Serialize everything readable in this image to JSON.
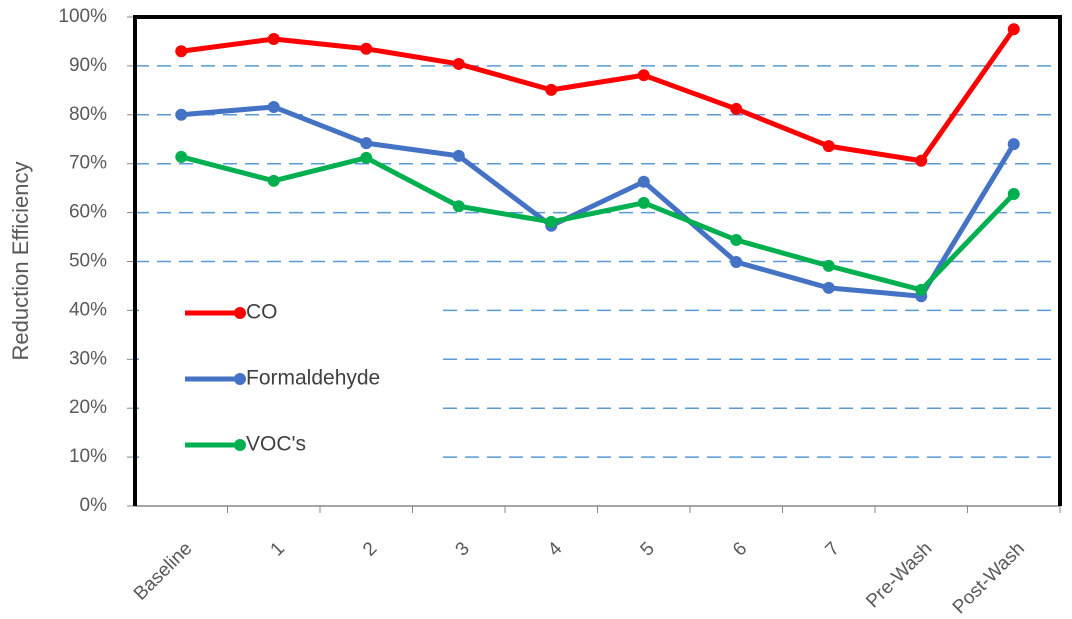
{
  "chart_data": {
    "type": "line",
    "y_label": "Reduction Efficiency",
    "categories": [
      "Baseline",
      "1",
      "2",
      "3",
      "4",
      "5",
      "6",
      "7",
      "Pre-Wash",
      "Post-Wash"
    ],
    "series": [
      {
        "name": "CO",
        "color": "#ff0000",
        "values": [
          93.0,
          95.5,
          93.5,
          90.4,
          85.1,
          88.1,
          81.2,
          73.6,
          70.6,
          97.5
        ]
      },
      {
        "name": "Formaldehyde",
        "color": "#4472c4",
        "values": [
          80.0,
          81.6,
          74.2,
          71.6,
          57.3,
          66.3,
          49.9,
          44.6,
          42.9,
          74.0
        ]
      },
      {
        "name": "VOC's",
        "color": "#00b050",
        "values": [
          71.4,
          66.5,
          71.2,
          61.3,
          58.1,
          62.0,
          54.4,
          49.1,
          44.2,
          63.8
        ]
      }
    ],
    "ylim": [
      0,
      100
    ],
    "yticks": [
      {
        "value": 0,
        "label": "0%"
      },
      {
        "value": 10,
        "label": "10%"
      },
      {
        "value": 20,
        "label": "20%"
      },
      {
        "value": 30,
        "label": "30%"
      },
      {
        "value": 40,
        "label": "40%"
      },
      {
        "value": 50,
        "label": "50%"
      },
      {
        "value": 60,
        "label": "60%"
      },
      {
        "value": 70,
        "label": "70%"
      },
      {
        "value": 80,
        "label": "80%"
      },
      {
        "value": 90,
        "label": "90%"
      },
      {
        "value": 100,
        "label": "100%"
      }
    ],
    "grid": true,
    "legend": "left"
  }
}
